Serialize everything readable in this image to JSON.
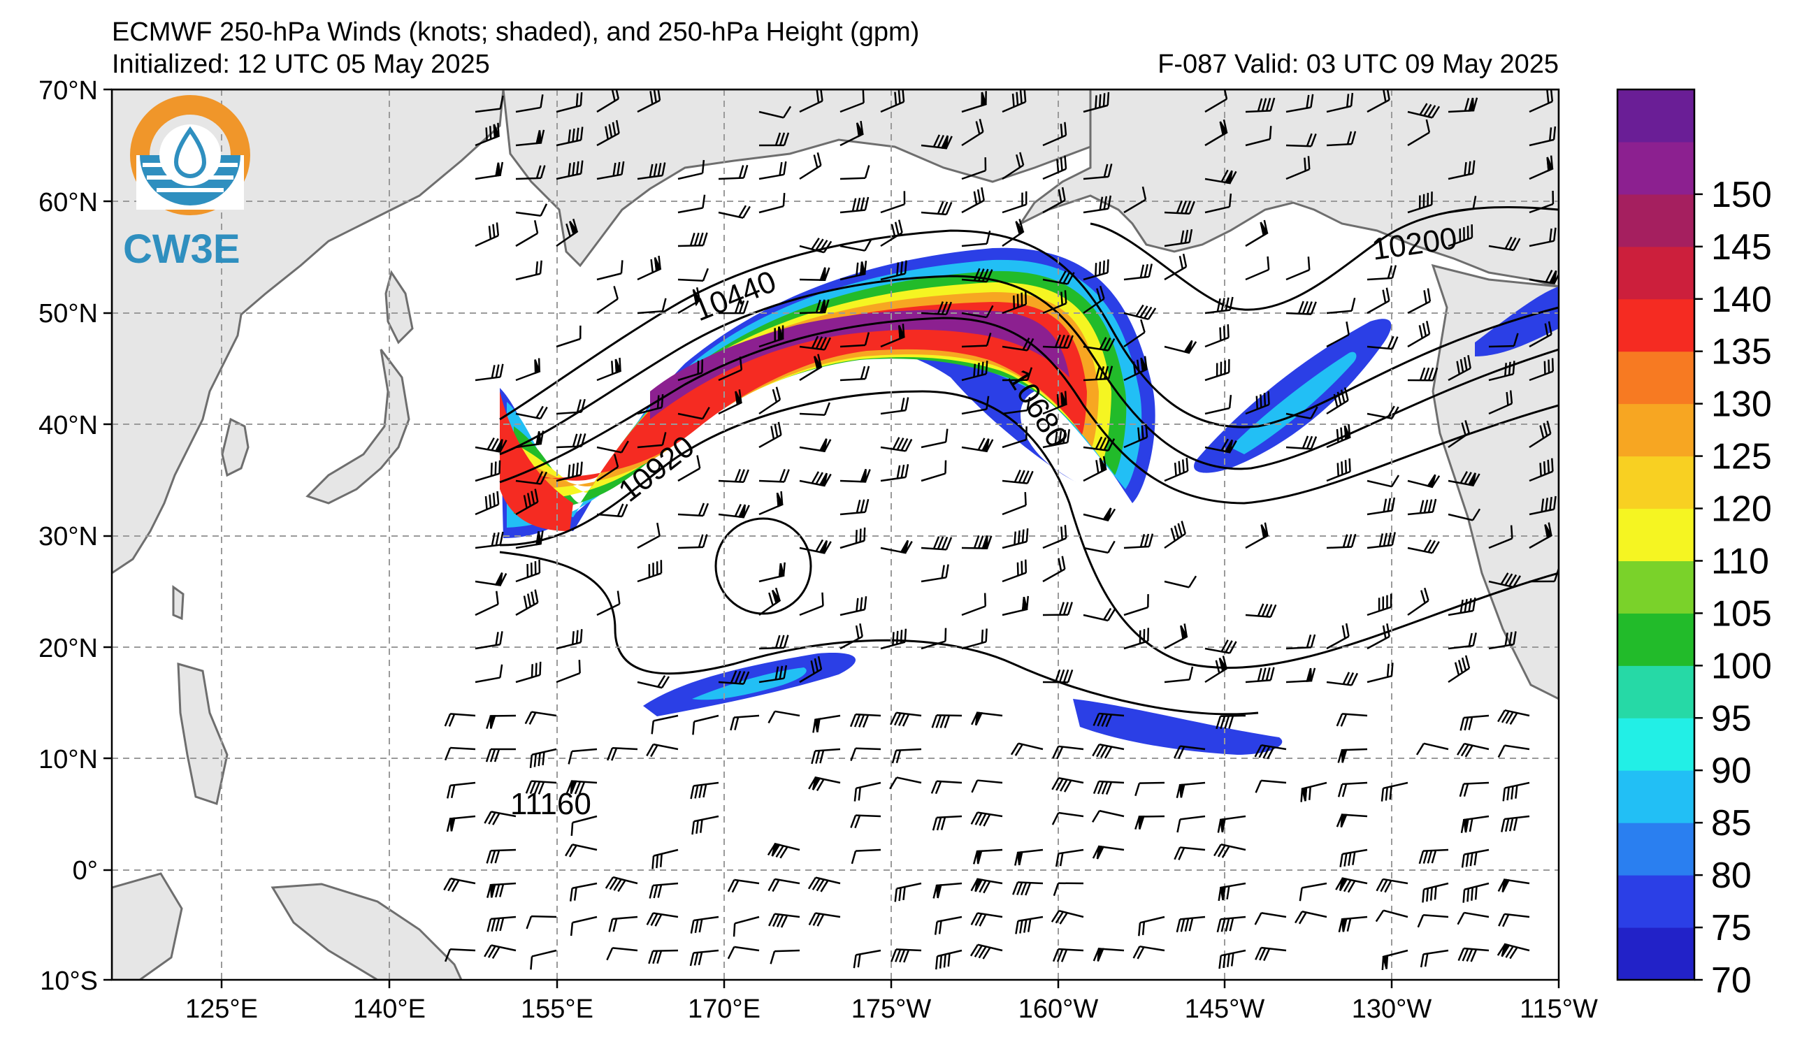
{
  "header": {
    "title": "ECMWF 250-hPa Winds (knots; shaded), and 250-hPa Height (gpm)",
    "initialized": "Initialized: 12 UTC 05 May 2025",
    "valid": "F-087  Valid: 03 UTC 09 May 2025"
  },
  "logo": {
    "text": "CW3E",
    "ring_top_color": "#f0962a",
    "ring_bottom_color": "#2f8fbf"
  },
  "axes": {
    "lat_labels": [
      "70°N",
      "60°N",
      "50°N",
      "40°N",
      "30°N",
      "20°N",
      "10°N",
      "0°",
      "10°S"
    ],
    "lon_labels": [
      "125°E",
      "140°E",
      "155°E",
      "170°E",
      "175°W",
      "160°W",
      "145°W",
      "130°W",
      "115°W"
    ]
  },
  "contour_labels": [
    "10200",
    "10440",
    "10680",
    "10920",
    "11160"
  ],
  "colorbar": {
    "labels": [
      "70",
      "75",
      "80",
      "85",
      "90",
      "95",
      "100",
      "105",
      "110",
      "120",
      "125",
      "130",
      "135",
      "140",
      "145",
      "150"
    ],
    "colors": [
      "#2222c8",
      "#2b3fe6",
      "#2a7ff0",
      "#22bff5",
      "#22efe6",
      "#26d9a6",
      "#22bb2a",
      "#7ad22a",
      "#f5f522",
      "#f8d022",
      "#f7a622",
      "#f77a22",
      "#f52b22",
      "#cc1f3c",
      "#a51f5f",
      "#8c2090",
      "#6a1e96"
    ]
  },
  "colors": {
    "land": "#e6e6e6",
    "coast": "#6e6e6e",
    "grid": "#9a9a9a",
    "contour": "#000000"
  }
}
